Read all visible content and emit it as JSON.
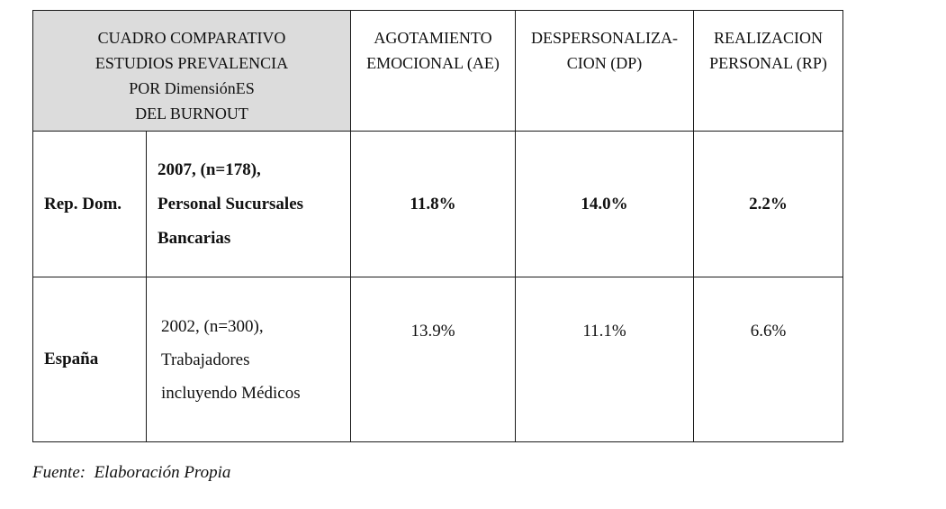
{
  "table": {
    "title_lines": [
      "CUADRO COMPARATIVO",
      "ESTUDIOS PREVALENCIA",
      "POR DimensiónES",
      "DEL BURNOUT"
    ],
    "columns": [
      {
        "lines": [
          "AGOTAMIENTO",
          "EMOCIONAL (AE)"
        ]
      },
      {
        "lines": [
          "DESPERSONALIZA-",
          "CION (DP)"
        ]
      },
      {
        "lines": [
          "REALIZACION",
          "PERSONAL (RP)"
        ]
      }
    ],
    "rows": [
      {
        "country": "Rep. Dom.",
        "study_lines": [
          "2007, (n=178),",
          "Personal Sucursales",
          "Bancarias"
        ],
        "ae": "11.8%",
        "dp": "14.0%",
        "rp": "2.2%"
      },
      {
        "country": "España",
        "study_lines": [
          "2002, (n=300),",
          "Trabajadores",
          "incluyendo Médicos"
        ],
        "ae": "13.9%",
        "dp": "11.1%",
        "rp": "6.6%"
      }
    ]
  },
  "source": "Fuente:  Elaboración Propia"
}
